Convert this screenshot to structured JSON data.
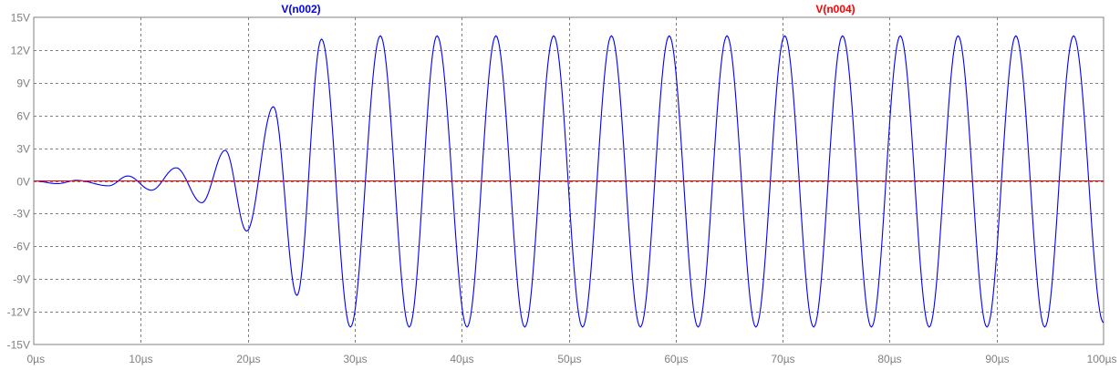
{
  "chart_data": {
    "type": "line",
    "title": "",
    "xlabel": "",
    "ylabel": "",
    "xlim": [
      0,
      100
    ],
    "ylim": [
      -15,
      15
    ],
    "x_ticks": [
      0,
      10,
      20,
      30,
      40,
      50,
      60,
      70,
      80,
      90,
      100
    ],
    "x_tick_labels": [
      "0µs",
      "10µs",
      "20µs",
      "30µs",
      "40µs",
      "50µs",
      "60µs",
      "70µs",
      "80µs",
      "90µs",
      "100µs"
    ],
    "y_ticks": [
      15,
      12,
      9,
      6,
      3,
      0,
      -3,
      -6,
      -9,
      -12,
      -15
    ],
    "y_tick_labels": [
      "15V",
      "12V",
      "9V",
      "6V",
      "3V",
      "0V",
      "-3V",
      "-6V",
      "-9V",
      "-12V",
      "-15V"
    ],
    "grid": true,
    "legend": "top",
    "series": [
      {
        "name": "V(n002)",
        "color": "#0000ff",
        "unit_x": "µs",
        "unit_y": "V",
        "points": [
          [
            0,
            0
          ],
          [
            2.2,
            -0.25
          ],
          [
            4.0,
            0.05
          ],
          [
            7.0,
            -0.45
          ],
          [
            8.8,
            0.45
          ],
          [
            11.0,
            -0.85
          ],
          [
            13.3,
            1.2
          ],
          [
            15.7,
            -2.0
          ],
          [
            17.9,
            2.8
          ],
          [
            19.9,
            -4.6
          ],
          [
            22.4,
            6.8
          ],
          [
            24.6,
            -10.5
          ],
          [
            26.9,
            13.0
          ],
          [
            29.6,
            -13.4
          ],
          [
            32.4,
            13.3
          ],
          [
            35.1,
            -13.4
          ],
          [
            37.7,
            13.3
          ],
          [
            40.5,
            -13.4
          ],
          [
            43.2,
            13.3
          ],
          [
            45.9,
            -13.4
          ],
          [
            48.6,
            13.3
          ],
          [
            51.3,
            -13.4
          ],
          [
            54.0,
            13.3
          ],
          [
            56.7,
            -13.4
          ],
          [
            59.4,
            13.3
          ],
          [
            62.1,
            -13.4
          ],
          [
            64.8,
            13.3
          ],
          [
            67.5,
            -13.4
          ],
          [
            70.2,
            13.3
          ],
          [
            72.9,
            -13.4
          ],
          [
            75.6,
            13.3
          ],
          [
            78.3,
            -13.4
          ],
          [
            81.0,
            13.3
          ],
          [
            83.7,
            -13.4
          ],
          [
            86.4,
            13.3
          ],
          [
            89.1,
            -13.4
          ],
          [
            91.8,
            13.3
          ],
          [
            94.5,
            -13.4
          ],
          [
            97.2,
            13.3
          ],
          [
            100,
            -13.0
          ]
        ]
      },
      {
        "name": "V(n004)",
        "color": "#ff0000",
        "unit_x": "µs",
        "unit_y": "V",
        "points": [
          [
            0,
            0
          ],
          [
            100,
            0
          ]
        ]
      }
    ]
  }
}
